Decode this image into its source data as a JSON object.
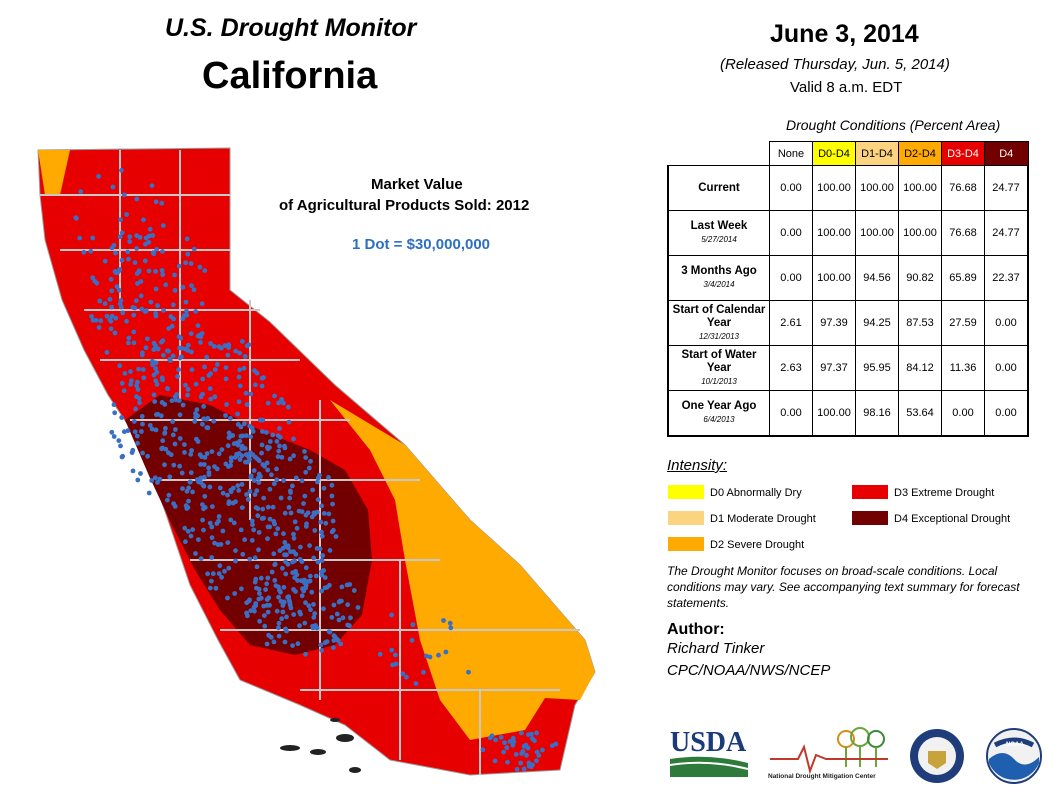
{
  "header": {
    "monitor_title": "U.S. Drought Monitor",
    "state": "California",
    "date": "June 3, 2014",
    "released": "(Released Thursday, Jun. 5, 2014)",
    "valid": "Valid 8 a.m. EDT"
  },
  "map": {
    "overlay_title_line1": "Market Value",
    "overlay_title_line2": "of Agricultural Products Sold:  2012",
    "dot_scale": "1 Dot = $30,000,000",
    "colors": {
      "none": "#ffffff",
      "d0": "#ffff00",
      "d1": "#fcd37f",
      "d2": "#ffaa00",
      "d3": "#e60000",
      "d4": "#730000",
      "dots": "#3a6fc4",
      "borders": "#c0c0c0"
    }
  },
  "conditions": {
    "caption": "Drought Conditions (Percent Area)",
    "columns": [
      {
        "label": "None",
        "color": "#ffffff",
        "text_color": "#000000"
      },
      {
        "label": "D0-D4",
        "color": "#ffff00",
        "text_color": "#000000"
      },
      {
        "label": "D1-D4",
        "color": "#fcd37f",
        "text_color": "#000000"
      },
      {
        "label": "D2-D4",
        "color": "#ffaa00",
        "text_color": "#000000"
      },
      {
        "label": "D3-D4",
        "color": "#e60000",
        "text_color": "#ffffff"
      },
      {
        "label": "D4",
        "color": "#730000",
        "text_color": "#ffffff"
      }
    ],
    "rows": [
      {
        "label": "Current",
        "sub": "",
        "values": [
          "0.00",
          "100.00",
          "100.00",
          "100.00",
          "76.68",
          "24.77"
        ]
      },
      {
        "label": "Last Week",
        "sub": "5/27/2014",
        "values": [
          "0.00",
          "100.00",
          "100.00",
          "100.00",
          "76.68",
          "24.77"
        ]
      },
      {
        "label": "3 Months Ago",
        "sub": "3/4/2014",
        "values": [
          "0.00",
          "100.00",
          "94.56",
          "90.82",
          "65.89",
          "22.37"
        ]
      },
      {
        "label": "Start of Calendar Year",
        "sub": "12/31/2013",
        "values": [
          "2.61",
          "97.39",
          "94.25",
          "87.53",
          "27.59",
          "0.00"
        ]
      },
      {
        "label": "Start of Water Year",
        "sub": "10/1/2013",
        "values": [
          "2.63",
          "97.37",
          "95.95",
          "84.12",
          "11.36",
          "0.00"
        ]
      },
      {
        "label": "One Year Ago",
        "sub": "6/4/2013",
        "values": [
          "0.00",
          "100.00",
          "98.16",
          "53.64",
          "0.00",
          "0.00"
        ]
      }
    ]
  },
  "legend": {
    "title": "Intensity:",
    "items": [
      {
        "label": "D0 Abnormally Dry",
        "color": "#ffff00"
      },
      {
        "label": "D1 Moderate Drought",
        "color": "#fcd37f"
      },
      {
        "label": "D2 Severe Drought",
        "color": "#ffaa00"
      },
      {
        "label": "D3 Extreme Drought",
        "color": "#e60000"
      },
      {
        "label": "D4 Exceptional Drought",
        "color": "#730000"
      }
    ]
  },
  "note": "The Drought Monitor focuses on broad-scale conditions. Local conditions may vary. See accompanying text summary for forecast statements.",
  "author": {
    "heading": "Author:",
    "name": "Richard Tinker",
    "org": "CPC/NOAA/NWS/NCEP"
  },
  "logos": {
    "usda": "USDA",
    "ndmc": "National Drought Mitigation Center",
    "noaa": "NOAA"
  }
}
